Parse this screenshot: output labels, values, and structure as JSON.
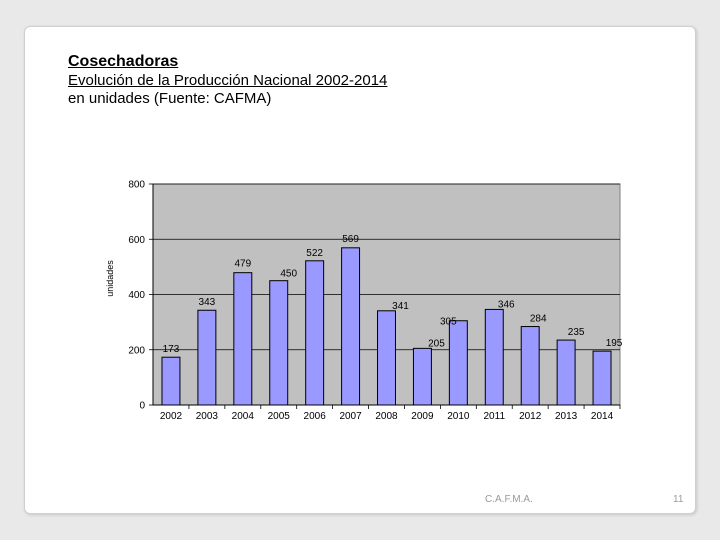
{
  "slide": {
    "title": "Cosechadoras",
    "subtitle": "Evolución de la Producción Nacional 2002-2014",
    "source_line": "en unidades (Fuente: CAFMA)",
    "footer_org": "C.A.F.M.A.",
    "page_number": "11"
  },
  "colors": {
    "plot_background": "#c0c0c0",
    "bar_fill": "#9999ff",
    "bar_stroke": "#000000",
    "gridline": "#000000"
  },
  "chart_data": {
    "type": "bar",
    "title": "",
    "xlabel": "",
    "ylabel": "unidades",
    "ylim": [
      0,
      800
    ],
    "yticks": [
      0,
      200,
      400,
      600,
      800
    ],
    "grid": true,
    "legend": "none",
    "categories": [
      "2002",
      "2003",
      "2004",
      "2005",
      "2006",
      "2007",
      "2008",
      "2009",
      "2010",
      "2011",
      "2012",
      "2013",
      "2014"
    ],
    "values": [
      173,
      343,
      479,
      450,
      522,
      569,
      341,
      205,
      305,
      346,
      284,
      235,
      195
    ]
  }
}
